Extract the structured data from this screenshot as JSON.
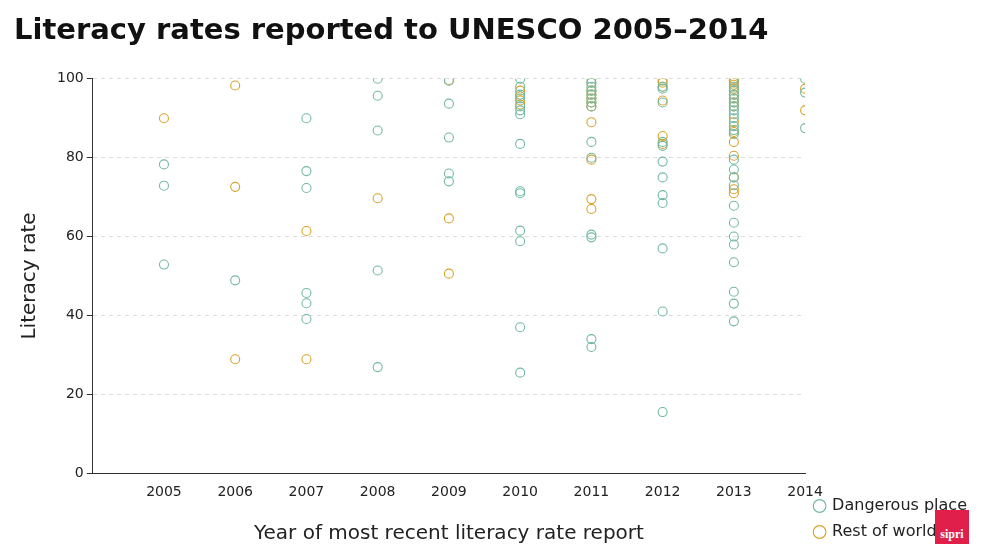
{
  "chart_data": {
    "type": "scatter",
    "title": "Literacy rates reported to UNESCO 2005–2014",
    "x_label": "Year of most recent literacy rate report",
    "y_label": "Literacy rate",
    "credit": "sipri",
    "xlim": [
      2004,
      2014
    ],
    "xticks": [
      2005,
      2006,
      2007,
      2008,
      2009,
      2010,
      2011,
      2012,
      2013,
      2014
    ],
    "ylim": [
      0,
      100
    ],
    "yticks": [
      0,
      20,
      40,
      60,
      80,
      100
    ],
    "grid": true,
    "legend": "bottom-right",
    "series": [
      {
        "name": "Dangerous place",
        "color": "#72b9a2",
        "marker": "circle",
        "x": [
          2005,
          2005,
          2005,
          2006,
          2007,
          2007,
          2007,
          2007,
          2007,
          2007,
          2008,
          2008,
          2008,
          2008,
          2008,
          2009,
          2009,
          2009,
          2009,
          2009,
          2010,
          2010,
          2010,
          2010,
          2010,
          2010,
          2010,
          2010,
          2010,
          2010,
          2010,
          2010,
          2010,
          2010,
          2011,
          2011,
          2011,
          2011,
          2011,
          2011,
          2011,
          2011,
          2011,
          2011,
          2011,
          2011,
          2011,
          2011,
          2012,
          2012,
          2012,
          2012,
          2012,
          2012,
          2012,
          2012,
          2012,
          2012,
          2012,
          2012,
          2013,
          2013,
          2013,
          2013,
          2013,
          2013,
          2013,
          2013,
          2013,
          2013,
          2013,
          2013,
          2013,
          2013,
          2013,
          2013,
          2013,
          2013,
          2013,
          2013,
          2013,
          2013,
          2013,
          2013,
          2013,
          2014,
          2014,
          2014
        ],
        "values": [
          78.3,
          72.9,
          52.9,
          48.9,
          90,
          76.6,
          72.3,
          45.7,
          43.1,
          39.1,
          100,
          95.7,
          86.9,
          51.4,
          26.9,
          99.5,
          93.7,
          85.1,
          76,
          74,
          100,
          98,
          96,
          95,
          93,
          92,
          91,
          83.5,
          71.5,
          71,
          61.5,
          58.8,
          37,
          25.5,
          100,
          99,
          98,
          97,
          96,
          95,
          94,
          93,
          84,
          80,
          60.5,
          59.8,
          34,
          32,
          98,
          97.5,
          94,
          84,
          83,
          79,
          75,
          70.5,
          68.5,
          57,
          41,
          15.5,
          99.5,
          98,
          97,
          96,
          95,
          94,
          93,
          92,
          91,
          90,
          88,
          87,
          86,
          79.5,
          77,
          75,
          73,
          67.8,
          63.5,
          60,
          58,
          53.5,
          46,
          43,
          38.5,
          100,
          96.5,
          87.5
        ]
      },
      {
        "name": "Rest of world",
        "color": "#d9a22b",
        "marker": "circle",
        "x": [
          2005,
          2006,
          2006,
          2006,
          2007,
          2007,
          2008,
          2009,
          2009,
          2009,
          2010,
          2010,
          2010,
          2010,
          2011,
          2011,
          2011,
          2011,
          2011,
          2011,
          2011,
          2011,
          2011,
          2011,
          2012,
          2012,
          2012,
          2012,
          2012,
          2012,
          2013,
          2013,
          2013,
          2013,
          2013,
          2013,
          2013,
          2013,
          2013,
          2013,
          2013,
          2013,
          2013,
          2013,
          2013,
          2013,
          2014,
          2014
        ],
        "values": [
          90,
          98.3,
          72.6,
          28.9,
          61.4,
          28.9,
          69.7,
          99.7,
          64.6,
          50.6,
          97,
          95.5,
          94.5,
          93.5,
          99,
          97,
          96,
          95,
          94,
          93,
          89,
          79.5,
          69.5,
          67,
          99.5,
          99,
          98,
          94.5,
          85.5,
          83.5,
          100,
          99.5,
          99,
          98.5,
          97.5,
          96,
          95,
          94,
          93,
          89,
          86.5,
          84,
          80.5,
          75,
          72,
          71,
          97.5,
          92
        ]
      }
    ]
  }
}
